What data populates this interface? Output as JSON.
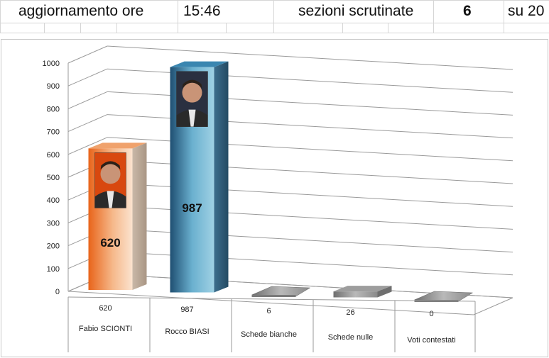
{
  "header": {
    "update_label": "aggiornamento ore",
    "update_time": "15:46",
    "sections_label": "sezioni scrutinate",
    "sections_count": "6",
    "sections_total": "su 20"
  },
  "chart_data": {
    "type": "bar",
    "categories": [
      "Fabio SCIONTI",
      "Rocco BIASI",
      "Schede bianche",
      "Schede nulle",
      "Voti contestati"
    ],
    "values": [
      620,
      987,
      6,
      26,
      0
    ],
    "data_labels": [
      "620",
      "987",
      "6",
      "26",
      "0"
    ],
    "bar_value_labels": [
      "620",
      "987"
    ],
    "ylim": [
      0,
      1000
    ],
    "yticks": [
      0,
      100,
      200,
      300,
      400,
      500,
      600,
      700,
      800,
      900,
      1000
    ],
    "grid": true,
    "style": "3d-columns-with-data-table",
    "colors": [
      "#e8641a",
      "#2e6f95",
      "#8a8a8a",
      "#8a8a8a",
      "#8a8a8a"
    ]
  },
  "photos": [
    {
      "icon": "candidate-photo-icon"
    },
    {
      "icon": "candidate-photo-icon"
    }
  ]
}
